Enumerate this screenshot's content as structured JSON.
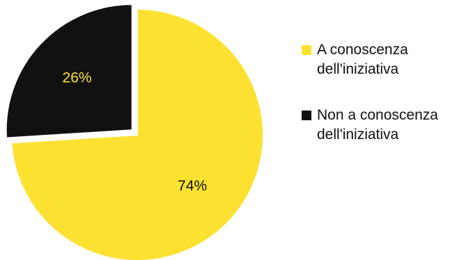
{
  "chart_data": {
    "type": "pie",
    "slices": [
      {
        "label": "A conoscenza dell'iniziativa",
        "value": 74,
        "display": "74%",
        "color": "#FCE131",
        "label_color": "#111111"
      },
      {
        "label": "Non a conoscenza dell'iniziativa",
        "value": 26,
        "display": "26%",
        "color": "#111111",
        "label_color": "#FCE131"
      }
    ],
    "legend_position": "right",
    "exploded_slice": "Non a conoscenza dell'iniziativa"
  }
}
